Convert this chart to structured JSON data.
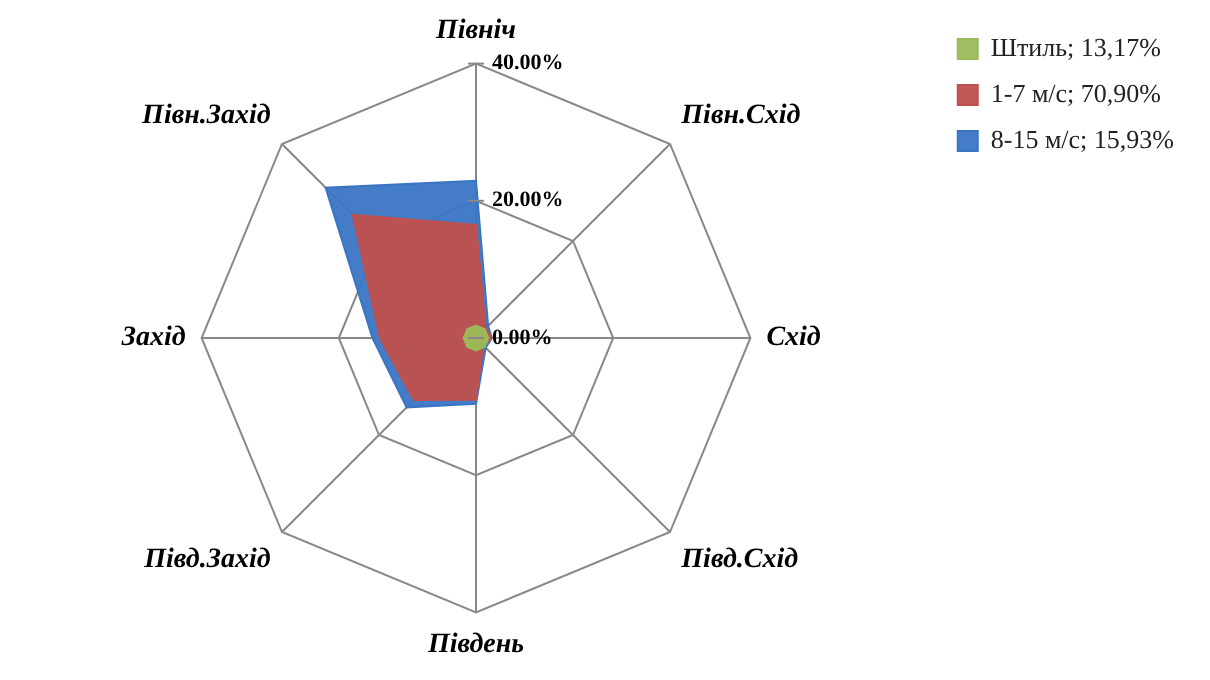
{
  "chart_data": {
    "type": "radar",
    "categories": [
      "Північ",
      "Півн.Схід",
      "Схід",
      "Півд.Схід",
      "Південь",
      "Півд.Захід",
      "Захід",
      "Півн.Захід"
    ],
    "series": [
      {
        "name": "Штиль; 13,17%",
        "color": "#9bbb59",
        "values": [
          1.8,
          1.8,
          1.8,
          1.8,
          1.8,
          1.8,
          1.8,
          1.8
        ]
      },
      {
        "name": "1-7 м/с; 70,90%",
        "color": "#c0504d",
        "values": [
          16.5,
          2,
          2.3,
          1.5,
          9,
          12.8,
          14,
          25.4
        ]
      },
      {
        "name": "8-15 м/с; 15,93%",
        "color": "#3a75c4",
        "values": [
          22.9,
          2.5,
          2.3,
          2,
          9.6,
          14.3,
          15.1,
          31
        ]
      }
    ],
    "ylim": [
      0,
      40
    ],
    "yticks": [
      {
        "value": 0,
        "label": "0.00%"
      },
      {
        "value": 20,
        "label": "20.00%"
      },
      {
        "value": 40,
        "label": "40.00%"
      }
    ],
    "grid": true,
    "legend": "top right",
    "marker": "none"
  }
}
